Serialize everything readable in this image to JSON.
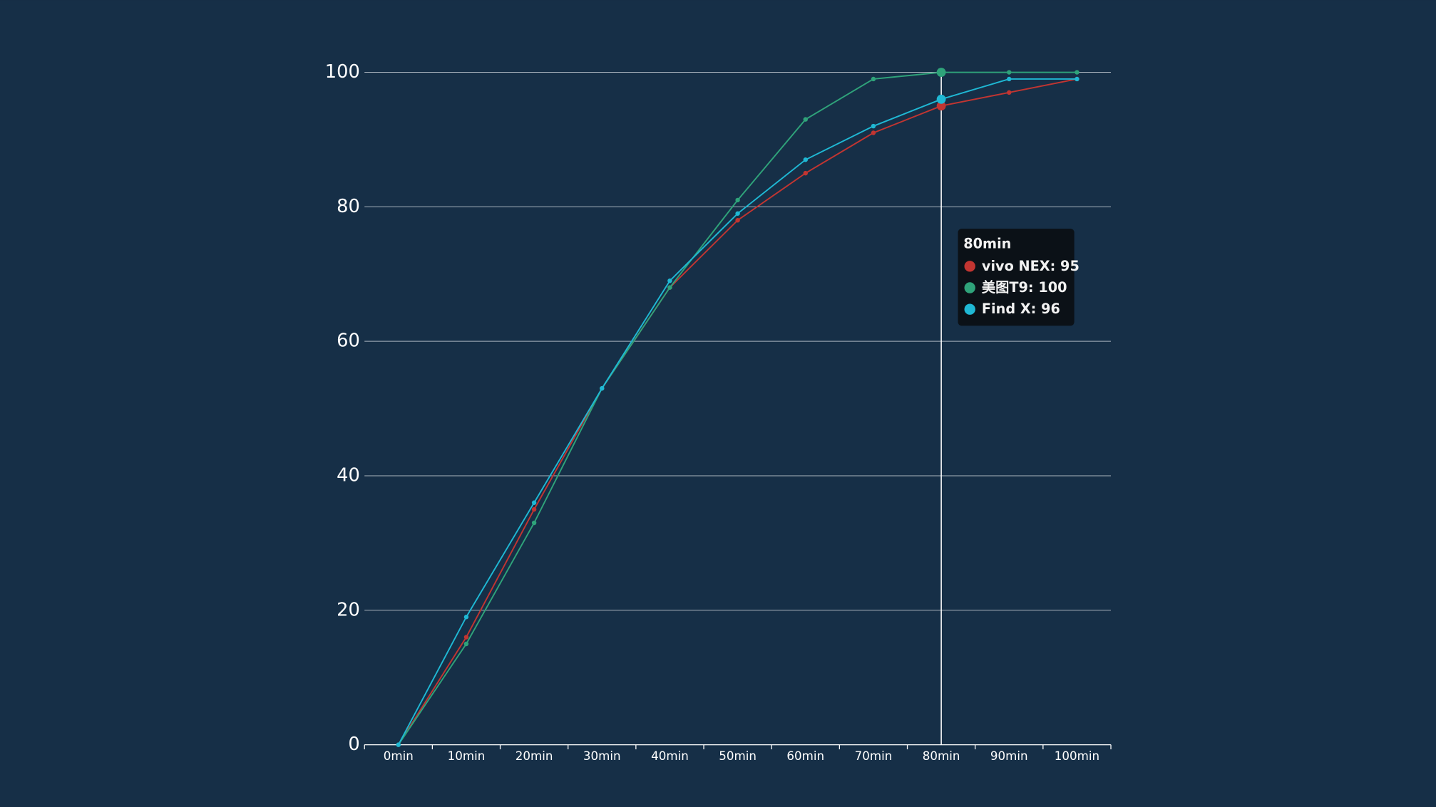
{
  "chart_data": {
    "type": "line",
    "categories": [
      "0min",
      "10min",
      "20min",
      "30min",
      "40min",
      "50min",
      "60min",
      "70min",
      "80min",
      "90min",
      "100min"
    ],
    "series": [
      {
        "name": "vivo NEX",
        "color": "#c23531",
        "values": [
          0,
          16,
          35,
          53,
          68,
          78,
          85,
          91,
          95,
          97,
          99
        ]
      },
      {
        "name": "美图T9",
        "color": "#2fa37a",
        "values": [
          0,
          15,
          33,
          53,
          68,
          81,
          93,
          99,
          100,
          100,
          100
        ]
      },
      {
        "name": "Find X",
        "color": "#1fb8d4",
        "values": [
          0,
          19,
          36,
          53,
          69,
          79,
          87,
          92,
          96,
          99,
          99
        ]
      }
    ],
    "ylim": [
      0,
      100
    ],
    "yticks": [
      0,
      20,
      40,
      60,
      80,
      100
    ],
    "grid": true,
    "hover_index": 8
  }
}
